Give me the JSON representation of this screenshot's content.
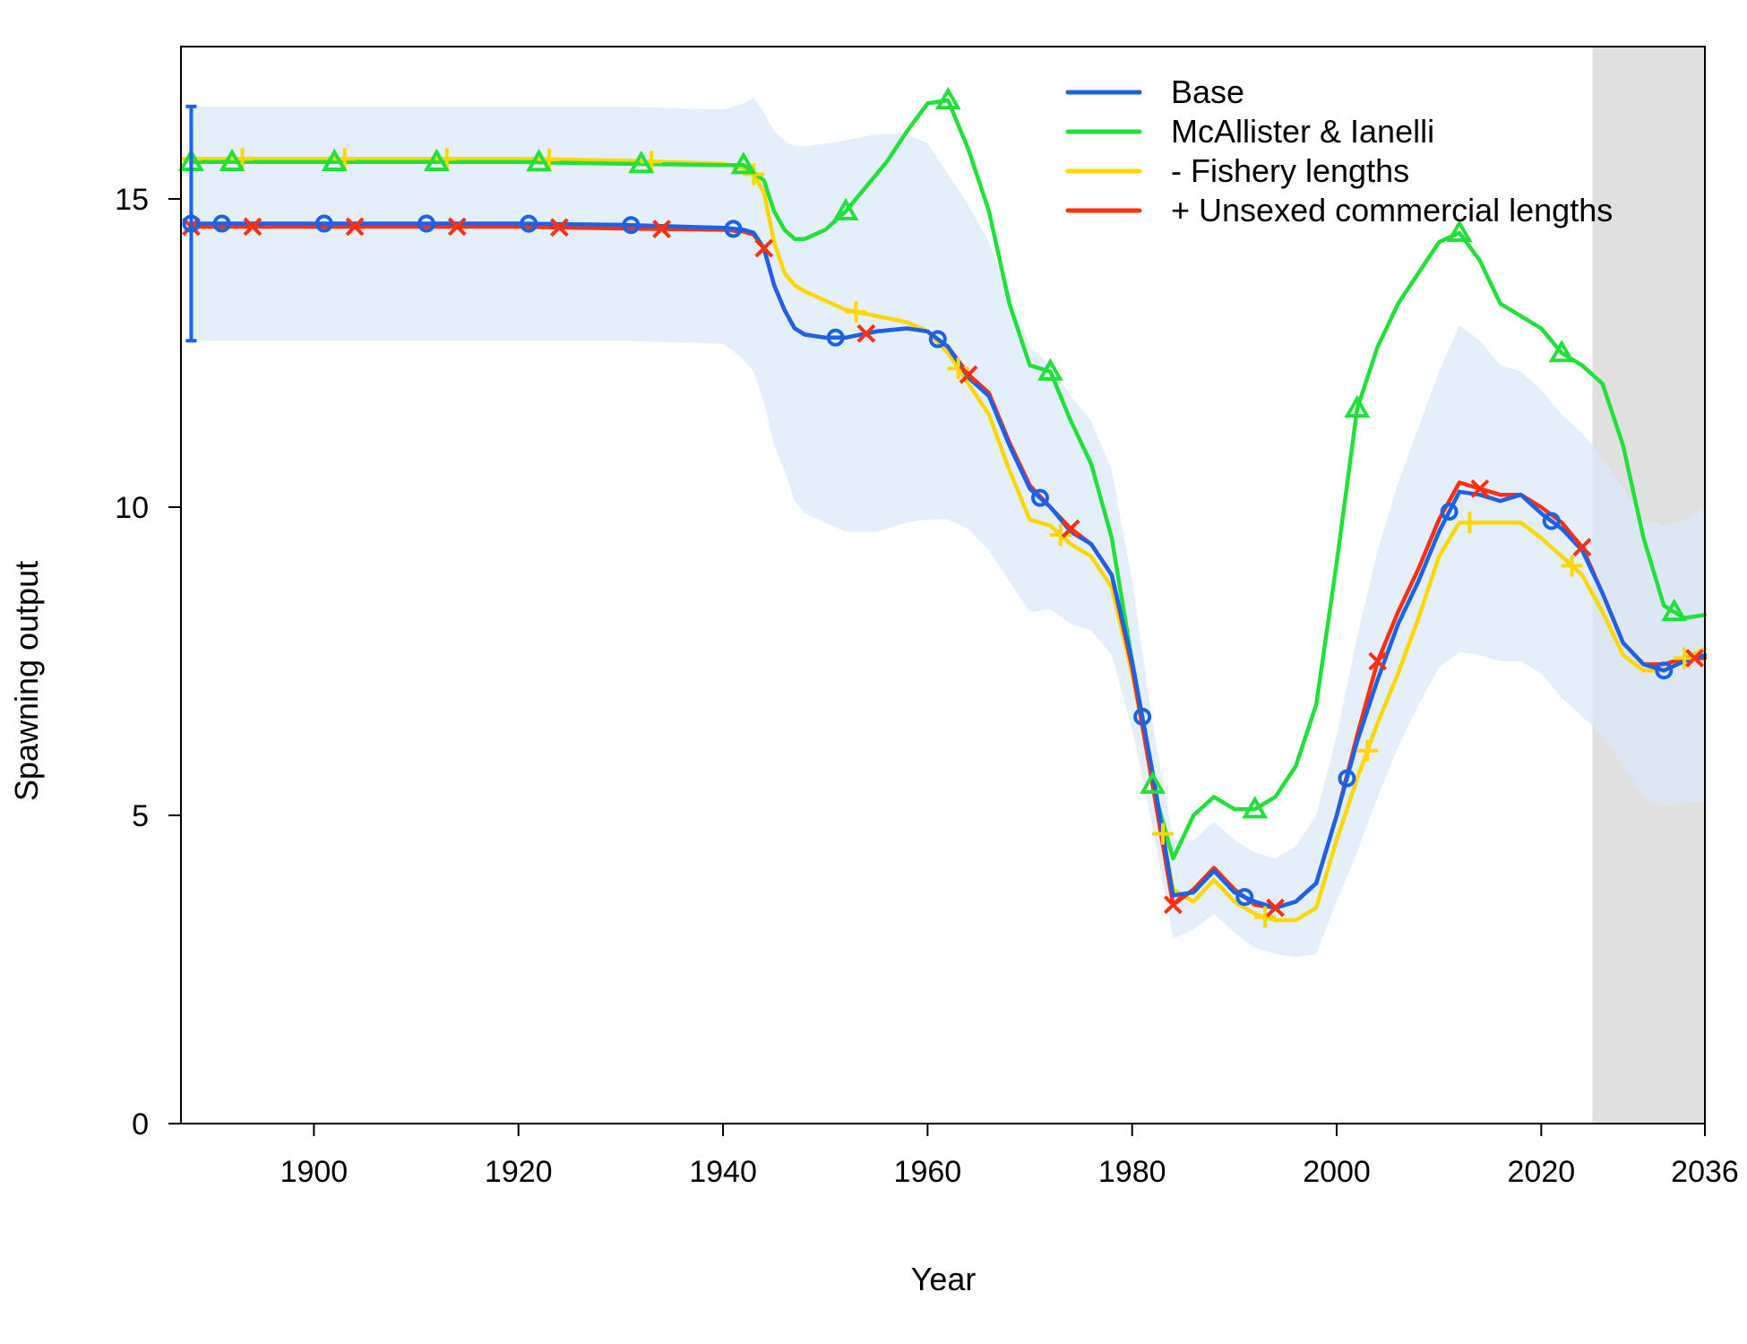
{
  "chart_data": {
    "type": "line",
    "title": "",
    "xlabel": "Year",
    "ylabel": "Spawning output",
    "xlim": [
      1887,
      2036
    ],
    "ylim": [
      0,
      15
    ],
    "x_ticks": [
      1900,
      1920,
      1940,
      1960,
      1980,
      2000,
      2020,
      2036
    ],
    "x_tick_labels": [
      "1900",
      "1920",
      "1940",
      "1960",
      "1980",
      "2000",
      "2020",
      "2036"
    ],
    "y_ticks": [
      0,
      5,
      10,
      15
    ],
    "y_tick_labels": [
      "0",
      "5",
      "10",
      "15"
    ],
    "forecast_region": {
      "from": 2025,
      "to": 2036,
      "color": "#e0e0e0"
    },
    "legend": {
      "placement": "top-right"
    },
    "series": [
      {
        "name": "Base",
        "color": "#1a63e8",
        "marker": "circle",
        "marker_years": [
          1888,
          1891,
          1901,
          1911,
          1921,
          1931,
          1941,
          1951,
          1961,
          1971,
          1981,
          1991,
          2001,
          2011,
          2021,
          2032
        ],
        "x": [
          1888,
          1890,
          1900,
          1910,
          1920,
          1930,
          1940,
          1942,
          1943,
          1944,
          1945,
          1946,
          1947,
          1948,
          1950,
          1952,
          1955,
          1958,
          1960,
          1962,
          1964,
          1966,
          1968,
          1970,
          1972,
          1974,
          1976,
          1978,
          1980,
          1982,
          1984,
          1986,
          1988,
          1990,
          1992,
          1994,
          1996,
          1998,
          2000,
          2002,
          2004,
          2006,
          2008,
          2010,
          2012,
          2014,
          2016,
          2018,
          2020,
          2022,
          2024,
          2026,
          2028,
          2030,
          2032,
          2034,
          2036
        ],
        "y": [
          14.6,
          14.6,
          14.6,
          14.6,
          14.6,
          14.58,
          14.53,
          14.5,
          14.45,
          14.2,
          13.6,
          13.2,
          12.9,
          12.8,
          12.75,
          12.75,
          12.85,
          12.9,
          12.85,
          12.6,
          12.1,
          11.8,
          11.0,
          10.3,
          10.0,
          9.6,
          9.4,
          8.9,
          7.5,
          5.7,
          3.7,
          3.75,
          4.1,
          3.75,
          3.6,
          3.5,
          3.6,
          3.9,
          5.0,
          6.2,
          7.2,
          8.1,
          8.8,
          9.6,
          10.25,
          10.2,
          10.1,
          10.2,
          9.9,
          9.65,
          9.3,
          8.6,
          7.8,
          7.45,
          7.35,
          7.5,
          7.6
        ]
      },
      {
        "name": "McAllister & Ianelli",
        "color": "#22e03a",
        "marker": "triangle",
        "marker_years": [
          1888,
          1892,
          1902,
          1912,
          1922,
          1932,
          1942,
          1952,
          1962,
          1972,
          1982,
          1992,
          2002,
          2012,
          2022,
          2033
        ],
        "x": [
          1888,
          1890,
          1900,
          1910,
          1920,
          1930,
          1940,
          1942,
          1944,
          1945,
          1946,
          1947,
          1948,
          1950,
          1952,
          1954,
          1956,
          1958,
          1960,
          1962,
          1964,
          1966,
          1968,
          1970,
          1972,
          1974,
          1976,
          1978,
          1980,
          1982,
          1984,
          1986,
          1988,
          1990,
          1992,
          1994,
          1996,
          1998,
          2000,
          2002,
          2004,
          2006,
          2008,
          2010,
          2012,
          2014,
          2016,
          2018,
          2020,
          2022,
          2024,
          2026,
          2028,
          2030,
          2032,
          2034,
          2036
        ],
        "y": [
          15.6,
          15.6,
          15.6,
          15.6,
          15.6,
          15.57,
          15.55,
          15.55,
          15.3,
          14.8,
          14.5,
          14.35,
          14.35,
          14.5,
          14.8,
          15.2,
          15.6,
          16.1,
          16.55,
          16.6,
          15.8,
          14.8,
          13.3,
          12.3,
          12.2,
          11.4,
          10.7,
          9.5,
          7.5,
          5.5,
          4.3,
          5.0,
          5.3,
          5.1,
          5.1,
          5.3,
          5.8,
          6.8,
          9.1,
          11.6,
          12.6,
          13.3,
          13.8,
          14.3,
          14.45,
          14.0,
          13.3,
          13.1,
          12.9,
          12.5,
          12.3,
          12.0,
          11.0,
          9.5,
          8.4,
          8.2,
          8.25
        ]
      },
      {
        "name": "- Fishery lengths",
        "color": "#ffd700",
        "marker": "plus",
        "marker_years": [
          1888,
          1893,
          1903,
          1913,
          1923,
          1933,
          1943,
          1953,
          1963,
          1973,
          1983,
          1993,
          2003,
          2013,
          2023,
          2034
        ],
        "x": [
          1888,
          1890,
          1900,
          1910,
          1920,
          1930,
          1940,
          1942,
          1943,
          1944,
          1945,
          1946,
          1947,
          1948,
          1950,
          1952,
          1955,
          1958,
          1960,
          1962,
          1964,
          1966,
          1968,
          1970,
          1972,
          1974,
          1976,
          1978,
          1980,
          1982,
          1984,
          1986,
          1988,
          1990,
          1992,
          1994,
          1996,
          1998,
          2000,
          2002,
          2004,
          2006,
          2008,
          2010,
          2012,
          2014,
          2016,
          2018,
          2020,
          2022,
          2024,
          2026,
          2028,
          2030,
          2032,
          2034,
          2036
        ],
        "y": [
          15.65,
          15.65,
          15.65,
          15.65,
          15.65,
          15.62,
          15.57,
          15.5,
          15.4,
          15.1,
          14.3,
          13.8,
          13.6,
          13.5,
          13.35,
          13.2,
          13.1,
          13.0,
          12.85,
          12.5,
          12.0,
          11.5,
          10.6,
          9.8,
          9.7,
          9.4,
          9.2,
          8.7,
          7.3,
          5.6,
          3.8,
          3.6,
          3.95,
          3.6,
          3.4,
          3.3,
          3.3,
          3.5,
          4.6,
          5.6,
          6.5,
          7.3,
          8.2,
          9.2,
          9.75,
          9.75,
          9.75,
          9.75,
          9.5,
          9.2,
          8.9,
          8.3,
          7.6,
          7.35,
          7.35,
          7.55,
          7.7
        ]
      },
      {
        "name": "+ Unsexed commercial lengths",
        "color": "#ff3010",
        "marker": "x",
        "marker_years": [
          1888,
          1894,
          1904,
          1914,
          1924,
          1934,
          1944,
          1954,
          1964,
          1974,
          1984,
          1994,
          2004,
          2014,
          2024,
          2035
        ],
        "x": [
          1888,
          1890,
          1900,
          1910,
          1920,
          1930,
          1940,
          1942,
          1943,
          1944,
          1945,
          1946,
          1947,
          1948,
          1950,
          1952,
          1955,
          1958,
          1960,
          1962,
          1964,
          1966,
          1968,
          1970,
          1972,
          1974,
          1976,
          1978,
          1980,
          1982,
          1984,
          1986,
          1988,
          1990,
          1992,
          1994,
          1996,
          1998,
          2000,
          2002,
          2004,
          2006,
          2008,
          2010,
          2012,
          2014,
          2016,
          2018,
          2020,
          2022,
          2024,
          2026,
          2028,
          2030,
          2032,
          2034,
          2036
        ],
        "y": [
          14.55,
          14.55,
          14.55,
          14.55,
          14.55,
          14.52,
          14.5,
          14.47,
          14.42,
          14.2,
          13.6,
          13.2,
          12.9,
          12.8,
          12.75,
          12.75,
          12.85,
          12.9,
          12.85,
          12.6,
          12.15,
          11.85,
          11.05,
          10.35,
          10.0,
          9.65,
          9.4,
          8.9,
          7.4,
          5.5,
          3.55,
          3.8,
          4.15,
          3.8,
          3.55,
          3.5,
          3.6,
          3.9,
          5.0,
          6.3,
          7.5,
          8.3,
          9.0,
          9.8,
          10.4,
          10.3,
          10.2,
          10.2,
          10.0,
          9.75,
          9.35,
          8.6,
          7.8,
          7.45,
          7.45,
          7.55,
          7.55
        ]
      }
    ],
    "base_interval": {
      "color": "#dce9fb",
      "x": [
        1888,
        1890,
        1900,
        1910,
        1920,
        1930,
        1940,
        1942,
        1943,
        1944,
        1945,
        1946,
        1947,
        1948,
        1950,
        1952,
        1955,
        1958,
        1960,
        1962,
        1964,
        1966,
        1968,
        1970,
        1972,
        1974,
        1976,
        1978,
        1980,
        1982,
        1984,
        1986,
        1988,
        1990,
        1992,
        1994,
        1996,
        1998,
        2000,
        2002,
        2004,
        2006,
        2008,
        2010,
        2012,
        2014,
        2016,
        2018,
        2020,
        2022,
        2024,
        2026,
        2028,
        2030,
        2032,
        2034,
        2036
      ],
      "upper": [
        16.5,
        16.5,
        16.5,
        16.5,
        16.5,
        16.5,
        16.45,
        16.55,
        16.65,
        16.4,
        16.1,
        15.95,
        15.85,
        15.85,
        15.9,
        15.95,
        16.05,
        16.05,
        15.9,
        15.4,
        14.9,
        14.3,
        13.5,
        12.6,
        12.3,
        11.8,
        11.4,
        10.6,
        8.8,
        6.5,
        4.6,
        4.6,
        4.9,
        4.6,
        4.4,
        4.3,
        4.5,
        5.0,
        6.3,
        7.9,
        9.3,
        10.4,
        11.3,
        12.2,
        12.95,
        12.7,
        12.3,
        12.2,
        11.9,
        11.5,
        11.2,
        10.8,
        10.3,
        9.8,
        9.7,
        9.8,
        10.0
      ],
      "lower": [
        12.7,
        12.7,
        12.7,
        12.7,
        12.7,
        12.7,
        12.65,
        12.4,
        12.2,
        11.7,
        11.0,
        10.6,
        10.1,
        9.9,
        9.75,
        9.6,
        9.6,
        9.75,
        9.8,
        9.8,
        9.65,
        9.3,
        8.8,
        8.3,
        8.35,
        8.1,
        8.0,
        7.6,
        6.4,
        4.8,
        3.0,
        3.15,
        3.4,
        3.1,
        2.85,
        2.75,
        2.7,
        2.75,
        3.6,
        4.4,
        5.3,
        6.1,
        6.8,
        7.4,
        7.65,
        7.6,
        7.5,
        7.5,
        7.3,
        6.9,
        6.6,
        6.3,
        5.8,
        5.3,
        5.15,
        5.2,
        5.2
      ]
    },
    "base_initial_errorbar": {
      "x": 1888,
      "low": 12.7,
      "high": 16.5
    }
  }
}
